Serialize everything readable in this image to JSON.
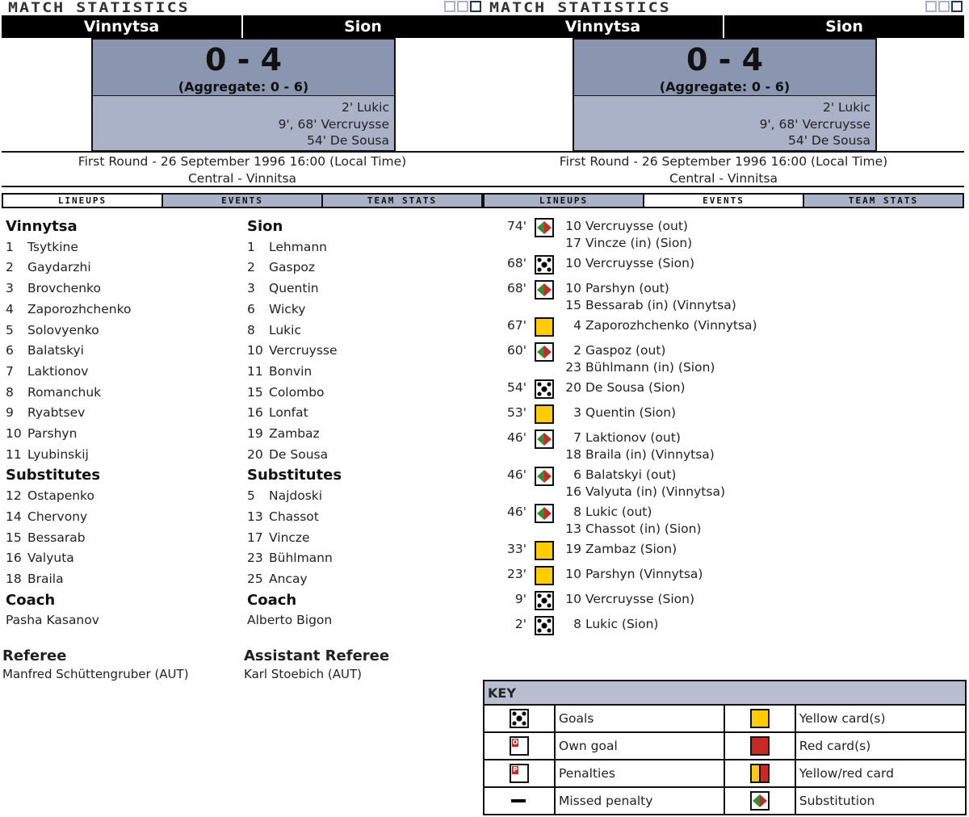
{
  "title": "MATCH STATISTICS",
  "home": "Vinnytsa",
  "away": "Sion",
  "score": "0 - 4",
  "aggregate": "(Aggregate: 0 - 6)",
  "scorers": [
    "2' Lukic",
    "9', 68' Vercruysse",
    "54' De Sousa"
  ],
  "round_info": "First Round - 26 September 1996 16:00 (Local Time)",
  "venue": "Central - Vinnitsa",
  "tabs": [
    "LINEUPS",
    "EVENTS",
    "TEAM STATS"
  ],
  "left_active_tab": 0,
  "right_active_tab": 1,
  "lineups": {
    "home": {
      "team": "Vinnytsa",
      "players": [
        [
          "1",
          "Tsytkine"
        ],
        [
          "2",
          "Gaydarzhi"
        ],
        [
          "3",
          "Brovchenko"
        ],
        [
          "4",
          "Zaporozhchenko"
        ],
        [
          "5",
          "Solovyenko"
        ],
        [
          "6",
          "Balatskyi"
        ],
        [
          "7",
          "Laktionov"
        ],
        [
          "8",
          "Romanchuk"
        ],
        [
          "9",
          "Ryabtsev"
        ],
        [
          "10",
          "Parshyn"
        ],
        [
          "11",
          "Lyubinskij"
        ]
      ],
      "subs_label": "Substitutes",
      "subs": [
        [
          "12",
          "Ostapenko"
        ],
        [
          "14",
          "Chervony"
        ],
        [
          "15",
          "Bessarab"
        ],
        [
          "16",
          "Valyuta"
        ],
        [
          "18",
          "Braila"
        ]
      ],
      "coach_label": "Coach",
      "coach": "Pasha Kasanov"
    },
    "away": {
      "team": "Sion",
      "players": [
        [
          "1",
          "Lehmann"
        ],
        [
          "2",
          "Gaspoz"
        ],
        [
          "3",
          "Quentin"
        ],
        [
          "6",
          "Wicky"
        ],
        [
          "8",
          "Lukic"
        ],
        [
          "10",
          "Vercruysse"
        ],
        [
          "11",
          "Bonvin"
        ],
        [
          "15",
          "Colombo"
        ],
        [
          "16",
          "Lonfat"
        ],
        [
          "19",
          "Zambaz"
        ],
        [
          "20",
          "De Sousa"
        ]
      ],
      "subs_label": "Substitutes",
      "subs": [
        [
          "5",
          "Najdoski"
        ],
        [
          "13",
          "Chassot"
        ],
        [
          "17",
          "Vincze"
        ],
        [
          "23",
          "Bühlmann"
        ],
        [
          "25",
          "Ancay"
        ]
      ],
      "coach_label": "Coach",
      "coach": "Alberto Bigon"
    }
  },
  "referee": {
    "label": "Referee",
    "name": "Manfred Schüttengruber (AUT)"
  },
  "assistant_referee": {
    "label": "Assistant Referee",
    "name": "Karl Stoebich (AUT)"
  },
  "events": [
    {
      "min": "74'",
      "type": "sub",
      "lines": [
        [
          "10",
          "Vercruysse (out)"
        ],
        [
          "17",
          "Vincze (in) (Sion)"
        ]
      ]
    },
    {
      "min": "68'",
      "type": "ball",
      "lines": [
        [
          "10",
          "Vercruysse (Sion)"
        ]
      ]
    },
    {
      "min": "68'",
      "type": "sub",
      "lines": [
        [
          "10",
          "Parshyn (out)"
        ],
        [
          "15",
          "Bessarab (in) (Vinnytsa)"
        ]
      ]
    },
    {
      "min": "67'",
      "type": "yellow",
      "lines": [
        [
          "4",
          "Zaporozhchenko (Vinnytsa)"
        ]
      ]
    },
    {
      "min": "60'",
      "type": "sub",
      "lines": [
        [
          "2",
          "Gaspoz (out)"
        ],
        [
          "23",
          "Bühlmann (in) (Sion)"
        ]
      ]
    },
    {
      "min": "54'",
      "type": "ball",
      "lines": [
        [
          "20",
          "De Sousa (Sion)"
        ]
      ]
    },
    {
      "min": "53'",
      "type": "yellow",
      "lines": [
        [
          "3",
          "Quentin (Sion)"
        ]
      ]
    },
    {
      "min": "46'",
      "type": "sub",
      "lines": [
        [
          "7",
          "Laktionov (out)"
        ],
        [
          "18",
          "Braila (in) (Vinnytsa)"
        ]
      ]
    },
    {
      "min": "46'",
      "type": "sub",
      "lines": [
        [
          "6",
          "Balatskyi (out)"
        ],
        [
          "16",
          "Valyuta (in) (Vinnytsa)"
        ]
      ]
    },
    {
      "min": "46'",
      "type": "sub",
      "lines": [
        [
          "8",
          "Lukic (out)"
        ],
        [
          "13",
          "Chassot (in) (Sion)"
        ]
      ]
    },
    {
      "min": "33'",
      "type": "yellow",
      "lines": [
        [
          "19",
          "Zambaz (Sion)"
        ]
      ]
    },
    {
      "min": "23'",
      "type": "yellow",
      "lines": [
        [
          "10",
          "Parshyn (Vinnytsa)"
        ]
      ]
    },
    {
      "min": "9'",
      "type": "ball",
      "lines": [
        [
          "10",
          "Vercruysse (Sion)"
        ]
      ]
    },
    {
      "min": "2'",
      "type": "ball",
      "lines": [
        [
          "8",
          "Lukic (Sion)"
        ]
      ]
    }
  ],
  "key": {
    "title": "KEY",
    "rows": [
      [
        {
          "icon": "ball",
          "label": "Goals"
        },
        {
          "icon": "yellow",
          "label": "Yellow card(s)"
        }
      ],
      [
        {
          "icon": "og",
          "label": "Own goal"
        },
        {
          "icon": "red",
          "label": "Red card(s)"
        }
      ],
      [
        {
          "icon": "pen",
          "label": "Penalties"
        },
        {
          "icon": "yr",
          "label": "Yellow/red card"
        }
      ],
      [
        {
          "icon": "miss",
          "label": "Missed penalty"
        },
        {
          "icon": "sub",
          "label": "Substitution"
        }
      ]
    ]
  },
  "colors": {
    "score_bg": "#8a96b0",
    "scorers_bg": "#aab2c8",
    "yellow": "#ffcc00",
    "red": "#c62a22",
    "green": "#3a8a3a"
  }
}
